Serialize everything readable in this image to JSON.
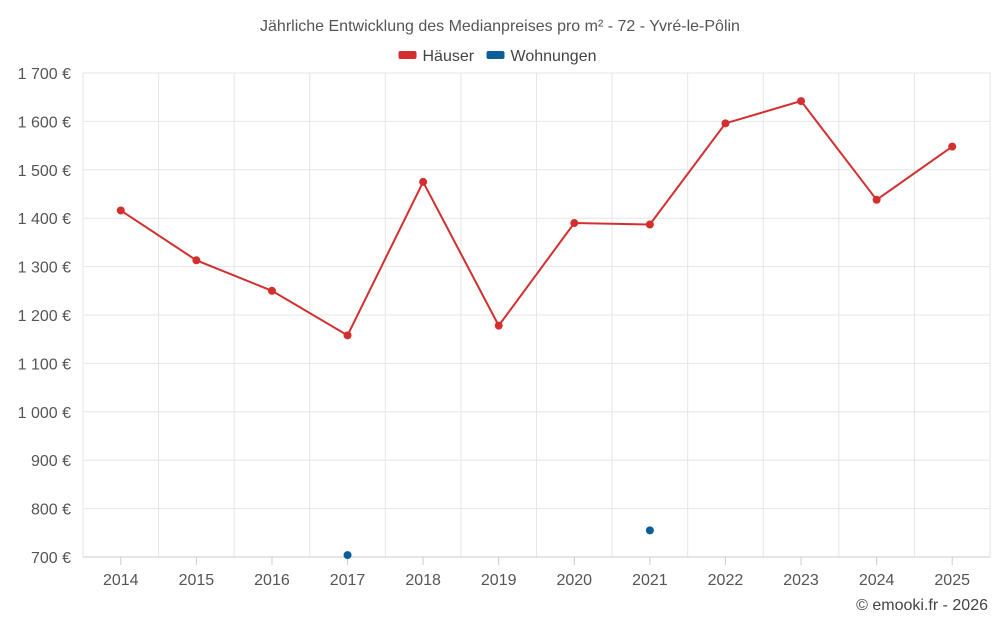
{
  "chart_data": {
    "type": "line",
    "title": "Jährliche Entwicklung des Medianpreises pro m² - 72 - Yvré-le-Pôlin",
    "categories": [
      "2014",
      "2015",
      "2016",
      "2017",
      "2018",
      "2019",
      "2020",
      "2021",
      "2022",
      "2023",
      "2024",
      "2025"
    ],
    "ylim": [
      700,
      1700
    ],
    "yticks": [
      700,
      800,
      900,
      1000,
      1100,
      1200,
      1300,
      1400,
      1500,
      1600,
      1700
    ],
    "ytick_labels": [
      "700 €",
      "800 €",
      "900 €",
      "1 000 €",
      "1 100 €",
      "1 200 €",
      "1 300 €",
      "1 400 €",
      "1 500 €",
      "1 600 €",
      "1 700 €"
    ],
    "grid": true,
    "legend_position": "top-center",
    "series": [
      {
        "name": "Häuser",
        "color": "#d32f2f",
        "values": [
          1416,
          1313,
          1250,
          1158,
          1475,
          1178,
          1390,
          1387,
          1596,
          1642,
          1438,
          1548
        ]
      },
      {
        "name": "Wohnungen",
        "color": "#0b5e9a",
        "values": [
          null,
          null,
          null,
          704,
          null,
          null,
          null,
          755,
          null,
          null,
          null,
          null
        ]
      }
    ]
  },
  "credit": "© emooki.fr - 2026"
}
